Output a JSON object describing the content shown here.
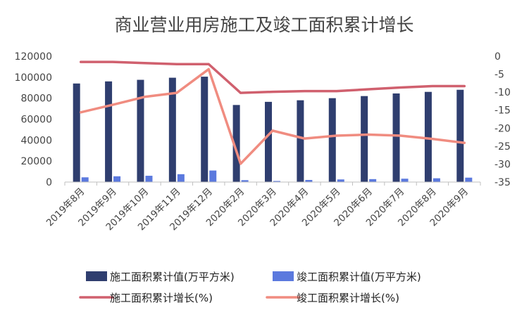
{
  "chart_data": {
    "type": "bar",
    "title": "商业营业用房施工及竣工面积累计增长",
    "categories": [
      "2019年8月",
      "2019年9月",
      "2019年10月",
      "2019年11月",
      "2019年12月",
      "2020年2月",
      "2020年3月",
      "2020年4月",
      "2020年5月",
      "2020年6月",
      "2020年7月",
      "2020年8月",
      "2020年9月"
    ],
    "y_left": {
      "min": 0,
      "max": 120000,
      "step": 20000,
      "ticks": [
        "0",
        "20000",
        "40000",
        "60000",
        "80000",
        "100000",
        "120000"
      ]
    },
    "y_right": {
      "min": -35,
      "max": 0,
      "step": 5,
      "ticks": [
        "-35",
        "-30",
        "-25",
        "-20",
        "-15",
        "-10",
        "-5",
        "0"
      ]
    },
    "series": [
      {
        "name": "施工面积累计值(万平方米)",
        "type": "bar",
        "axis": "left",
        "color": "#2F3E6F",
        "values": [
          94000,
          96000,
          97500,
          99500,
          100500,
          73500,
          76500,
          78000,
          80000,
          82000,
          84500,
          86000,
          88000
        ]
      },
      {
        "name": "竣工面积累计值(万平方米)",
        "type": "bar",
        "axis": "left",
        "color": "#5B79DE",
        "values": [
          4500,
          5500,
          6000,
          7500,
          11000,
          1800,
          1000,
          2000,
          2500,
          2800,
          3200,
          3600,
          4200
        ]
      },
      {
        "name": "施工面积累计增长(%)",
        "type": "line",
        "axis": "right",
        "color": "#D0606E",
        "values": [
          -1.6,
          -1.6,
          -1.9,
          -2.2,
          -2.2,
          -10.2,
          -9.9,
          -9.7,
          -9.7,
          -9.2,
          -8.7,
          -8.3,
          -8.3
        ]
      },
      {
        "name": "竣工面积累计增长(%)",
        "type": "line",
        "axis": "right",
        "color": "#F08C80",
        "values": [
          -15.6,
          -13.5,
          -11.3,
          -10.2,
          -3.6,
          -29.9,
          -20.7,
          -22.9,
          -22.1,
          -21.8,
          -22.1,
          -23.0,
          -24.1
        ]
      }
    ],
    "legend": "bottom",
    "grid": false
  }
}
